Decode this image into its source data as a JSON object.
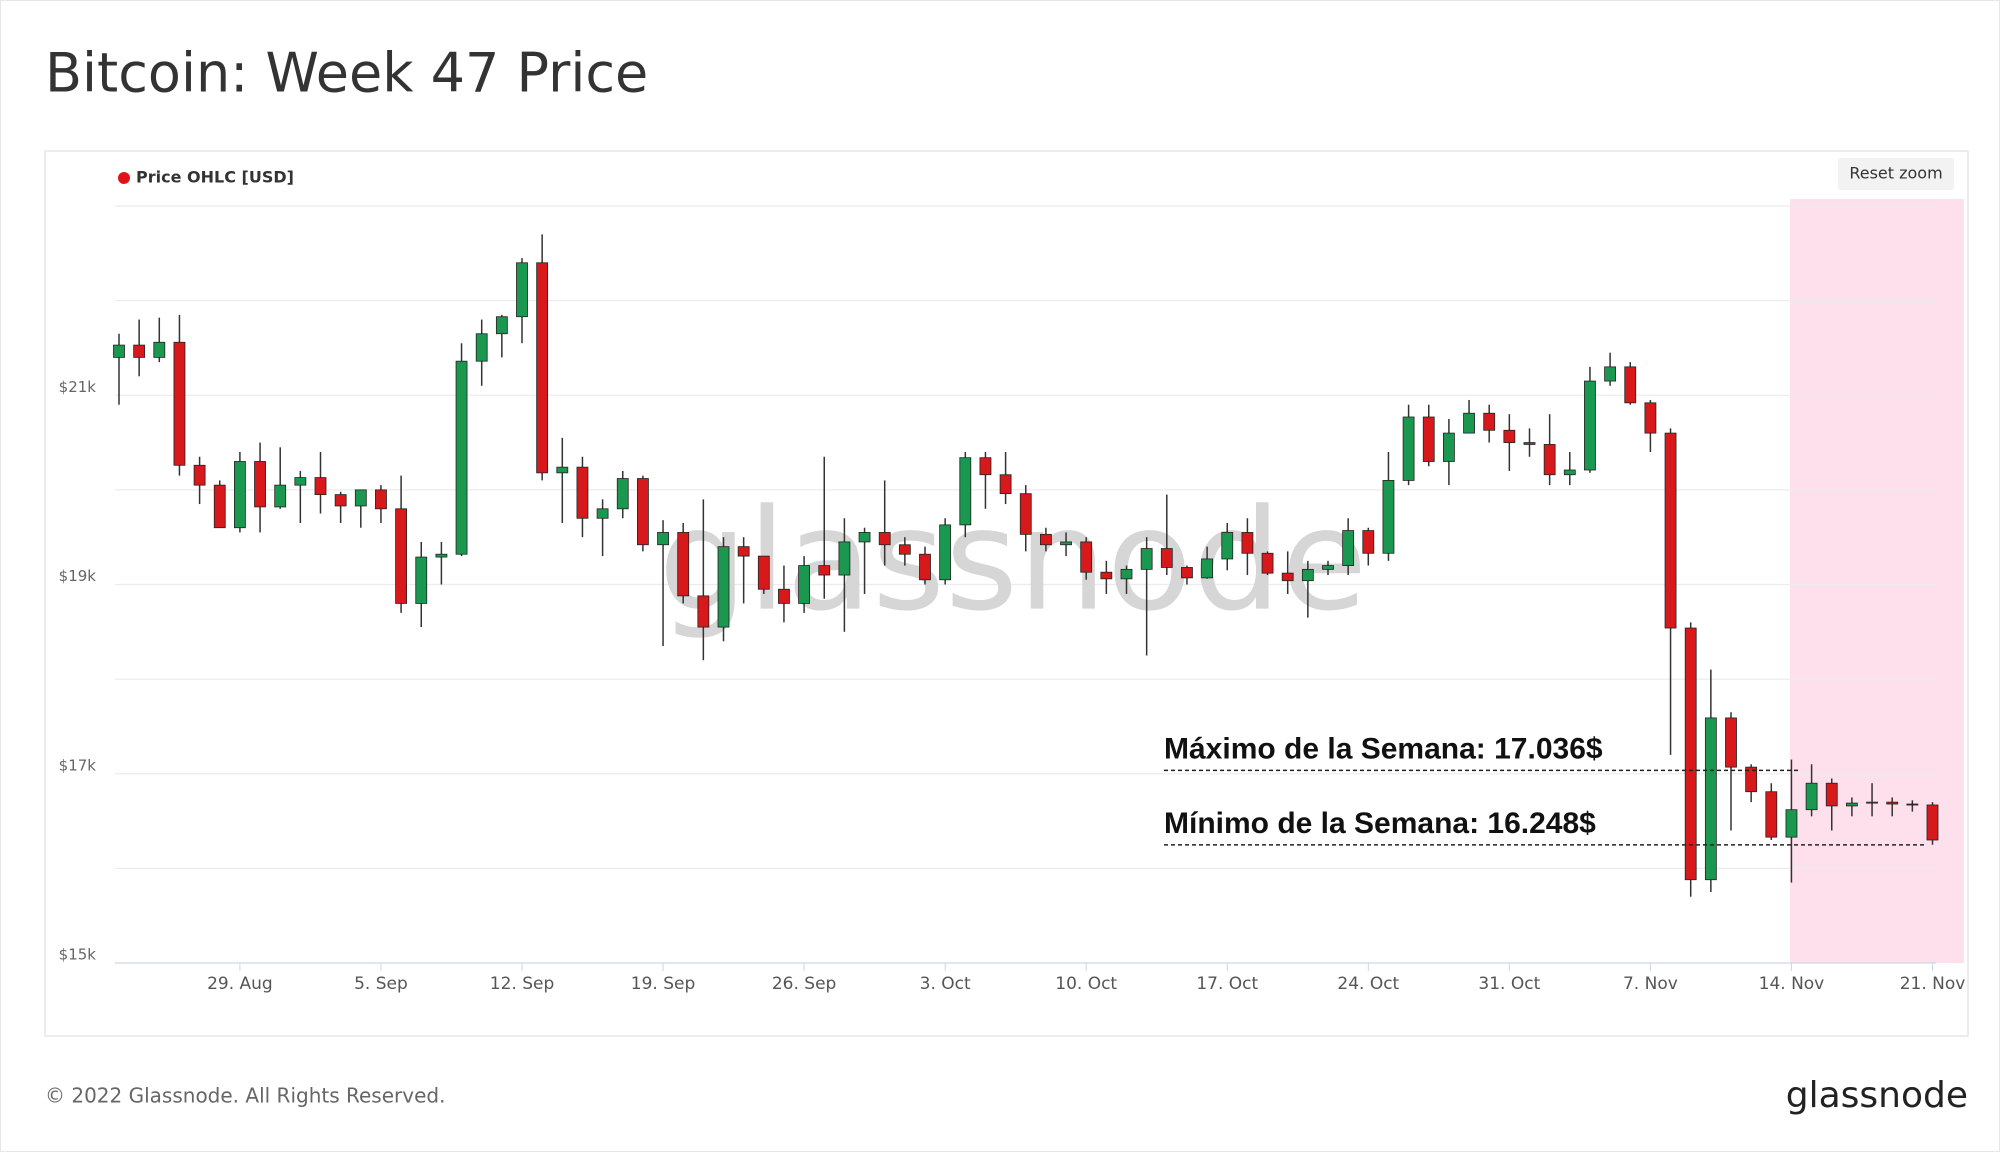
{
  "header": {
    "title": "Bitcoin: Week 47 Price"
  },
  "chart_data": {
    "type": "candlestick",
    "legend_label": "Price OHLC [USD]",
    "legend_color": "#e0131b",
    "reset_zoom_label": "Reset zoom",
    "watermark": "glassnode",
    "up_color": "#1a9850",
    "down_color": "#d7191c",
    "categories": [
      null,
      null,
      null,
      null,
      null,
      null,
      "29. Aug",
      null,
      null,
      null,
      null,
      null,
      null,
      "5. Sep",
      null,
      null,
      null,
      null,
      null,
      null,
      "12. Sep",
      null,
      null,
      null,
      null,
      null,
      null,
      "19. Sep",
      null,
      null,
      null,
      null,
      null,
      null,
      "26. Sep",
      null,
      null,
      null,
      null,
      null,
      null,
      "3. Oct",
      null,
      null,
      null,
      null,
      null,
      null,
      "10. Oct",
      null,
      null,
      null,
      null,
      null,
      null,
      "17. Oct",
      null,
      null,
      null,
      null,
      null,
      null,
      "24. Oct",
      null,
      null,
      null,
      null,
      null,
      null,
      "31. Oct",
      null,
      null,
      null,
      null,
      null,
      null,
      "7. Nov",
      null,
      null,
      null,
      null,
      null,
      null,
      "14. Nov",
      null,
      null,
      null,
      null,
      null,
      null,
      "21. Nov"
    ],
    "open": [
      21400,
      21530,
      21400,
      21560,
      20260,
      20050,
      19600,
      20300,
      19820,
      20050,
      20130,
      19950,
      19830,
      20000,
      19800,
      18800,
      19290,
      19320,
      21360,
      21650,
      21830,
      22400,
      20180,
      20240,
      19700,
      19800,
      20120,
      19420,
      19550,
      18880,
      18550,
      19400,
      19300,
      18950,
      18800,
      19200,
      19100,
      19450,
      19550,
      19420,
      19320,
      19050,
      19630,
      20340,
      20160,
      19960,
      19530,
      19420,
      19450,
      19130,
      19060,
      19160,
      19380,
      19180,
      19070,
      19270,
      19550,
      19330,
      19120,
      19040,
      19160,
      19200,
      19570,
      19330,
      20100,
      20770,
      20300,
      20600,
      20810,
      20630,
      20500,
      20480,
      20160,
      20210,
      21150,
      21300,
      20920,
      20600,
      18540,
      15880,
      17590,
      17070,
      16810,
      16330,
      16620,
      16900,
      16660,
      16690,
      16700,
      16680,
      16670
    ],
    "high": [
      21650,
      21800,
      21820,
      21850,
      20350,
      20100,
      20400,
      20500,
      20450,
      20200,
      20400,
      19980,
      20000,
      20050,
      20150,
      19450,
      19450,
      21550,
      21800,
      21850,
      22450,
      22700,
      20550,
      20350,
      19900,
      20200,
      20150,
      19680,
      19650,
      19900,
      19500,
      19500,
      19300,
      19200,
      19300,
      20350,
      19700,
      19600,
      20100,
      19500,
      19400,
      19700,
      20400,
      20400,
      20400,
      20050,
      19600,
      19550,
      19500,
      19250,
      19200,
      19500,
      19950,
      19200,
      19400,
      19650,
      19700,
      19350,
      19350,
      19250,
      19250,
      19700,
      19600,
      20400,
      20900,
      20900,
      20750,
      20950,
      20900,
      20800,
      20650,
      20800,
      20400,
      21300,
      21450,
      21350,
      20950,
      20650,
      18600,
      18100,
      17650,
      17100,
      16900,
      17150,
      17100,
      16950,
      16750,
      16900,
      16750,
      16720,
      16700
    ],
    "low": [
      20900,
      21200,
      21350,
      20150,
      19850,
      19600,
      19550,
      19550,
      19800,
      19650,
      19750,
      19650,
      19600,
      19650,
      18700,
      18550,
      19000,
      19300,
      21100,
      21400,
      21550,
      20100,
      19650,
      19500,
      19300,
      19700,
      19350,
      18350,
      18800,
      18200,
      18400,
      18800,
      18900,
      18600,
      18700,
      18850,
      18500,
      18900,
      19200,
      19200,
      19000,
      19000,
      19500,
      19800,
      19850,
      19350,
      19350,
      19300,
      19050,
      18900,
      18900,
      18250,
      19100,
      19000,
      19060,
      19150,
      19100,
      19100,
      18900,
      18650,
      19100,
      19100,
      19200,
      19250,
      20050,
      20250,
      20050,
      20600,
      20500,
      20200,
      20350,
      20050,
      20050,
      20180,
      21100,
      20900,
      20400,
      17200,
      15700,
      15750,
      16400,
      16700,
      16300,
      15850,
      16550,
      16400,
      16550,
      16550,
      16550,
      16600,
      16250
    ],
    "close": [
      21530,
      21400,
      21560,
      20260,
      20050,
      19600,
      20300,
      19820,
      20050,
      20130,
      19950,
      19830,
      20000,
      19800,
      18800,
      19290,
      19320,
      21360,
      21650,
      21830,
      22400,
      20180,
      20240,
      19700,
      19800,
      20120,
      19420,
      19550,
      18880,
      18550,
      19400,
      19300,
      18950,
      18800,
      19200,
      19100,
      19450,
      19550,
      19420,
      19320,
      19050,
      19630,
      20340,
      20160,
      19960,
      19530,
      19420,
      19450,
      19130,
      19060,
      19160,
      19380,
      19180,
      19070,
      19270,
      19550,
      19330,
      19120,
      19040,
      19160,
      19200,
      19570,
      19330,
      20100,
      20770,
      20300,
      20600,
      20810,
      20630,
      20500,
      20480,
      20160,
      20210,
      21150,
      21300,
      20920,
      20600,
      18540,
      15880,
      17590,
      17070,
      16810,
      16330,
      16620,
      16900,
      16660,
      16690,
      16700,
      16680,
      16670,
      16300
    ],
    "ylim": [
      15000,
      23000
    ],
    "yticks": [
      {
        "value": 15000,
        "label": "$15k"
      },
      {
        "value": 17000,
        "label": "$17k"
      },
      {
        "value": 19000,
        "label": "$19k"
      },
      {
        "value": 21000,
        "label": "$21k"
      }
    ],
    "minor_yticks": [
      16000,
      18000,
      20000,
      22000,
      23000
    ],
    "grid": true,
    "annotations": [
      {
        "text": "Máximo de la Semana: 17.036$",
        "value": 17036
      },
      {
        "text": "Mínimo de la Semana: 16.248$",
        "value": 16248
      }
    ]
  },
  "footer": {
    "copyright": "© 2022 Glassnode. All Rights Reserved.",
    "logo": "glassnode"
  }
}
